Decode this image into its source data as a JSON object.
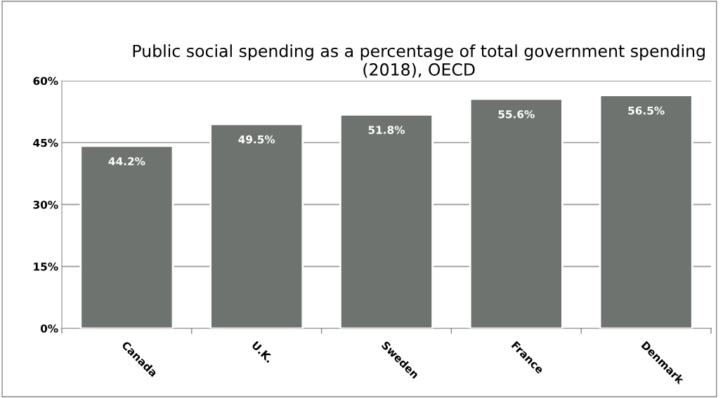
{
  "chart_data": {
    "type": "bar",
    "title": "Public social spending as a percentage of total government spending (2018), OECD",
    "categories": [
      "Canada",
      "U.K.",
      "Sweden",
      "France",
      "Denmark"
    ],
    "values": [
      44.2,
      49.5,
      51.8,
      55.6,
      56.5
    ],
    "value_labels": [
      "44.2%",
      "49.5%",
      "51.8%",
      "55.6%",
      "56.5%"
    ],
    "color": "#6f7370",
    "ylim": [
      0,
      60
    ],
    "yticks": [
      {
        "value": 0,
        "label": "0%"
      },
      {
        "value": 15,
        "label": "15%"
      },
      {
        "value": 30,
        "label": "30%"
      },
      {
        "value": 45,
        "label": "45%"
      },
      {
        "value": 60,
        "label": "60%"
      }
    ],
    "grid": "y"
  }
}
